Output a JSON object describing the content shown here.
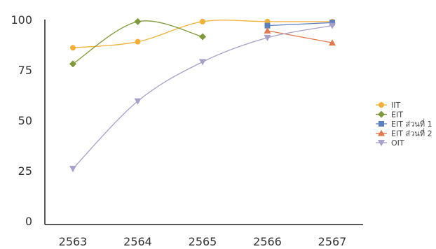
{
  "chart_data": {
    "type": "line",
    "title": "",
    "xlabel": "",
    "ylabel": "",
    "categories": [
      "2563",
      "2564",
      "2565",
      "2566",
      "2567"
    ],
    "ylim": [
      0,
      100
    ],
    "yticks": [
      0,
      25,
      50,
      75,
      100
    ],
    "grid": false,
    "legend_position": "right",
    "series": [
      {
        "name": "IIT",
        "color": "#F2B134",
        "marker": "circle",
        "values": [
          86,
          89,
          99,
          99,
          99
        ]
      },
      {
        "name": "EIT",
        "color": "#7E9A3A",
        "marker": "diamond",
        "values": [
          78,
          99,
          91.5,
          null,
          null
        ]
      },
      {
        "name": "EIT ส่วนที่ 1",
        "color": "#5A7FC0",
        "marker": "square",
        "values": [
          null,
          null,
          null,
          97,
          98.5
        ]
      },
      {
        "name": "EIT ส่วนที่ 2",
        "color": "#E07A4E",
        "marker": "triangle-up",
        "values": [
          null,
          null,
          null,
          94.5,
          88.5
        ]
      },
      {
        "name": "OIT",
        "color": "#A8A0C8",
        "marker": "triangle-down",
        "values": [
          26,
          59.5,
          79,
          91,
          97
        ]
      }
    ]
  }
}
